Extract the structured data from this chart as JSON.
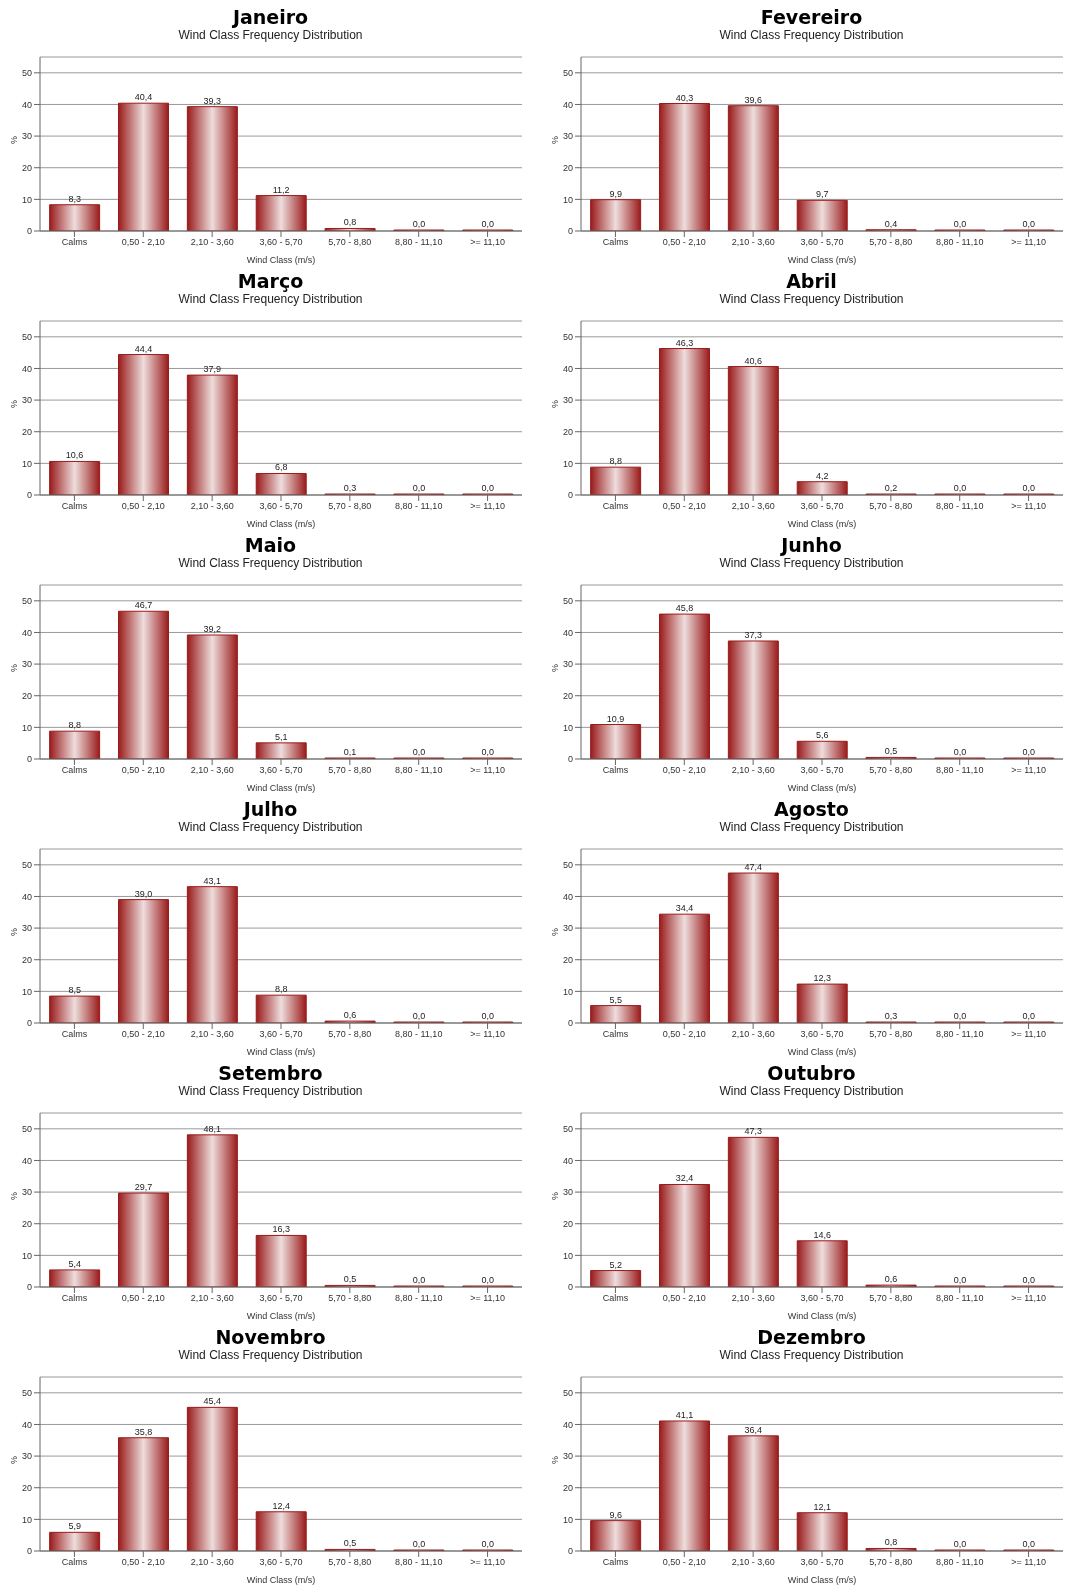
{
  "chart_data": [
    {
      "type": "bar",
      "title": "Janeiro",
      "subtitle": "Wind Class Frequency Distribution",
      "xlabel": "Wind Class (m/s)",
      "ylabel": "%",
      "categories": [
        "Calms",
        "0,50 - 2,10",
        "2,10 - 3,60",
        "3,60 - 5,70",
        "5,70 - 8,80",
        "8,80 - 11,10",
        ">= 11,10"
      ],
      "values": [
        8.3,
        40.4,
        39.3,
        11.2,
        0.8,
        0.0,
        0.0
      ],
      "value_labels": [
        "8,3",
        "40,4",
        "39,3",
        "11,2",
        "0,8",
        "0,0",
        "0,0"
      ],
      "color": "#9a1b1b",
      "ylim": [
        0,
        55
      ],
      "yticks": [
        0,
        10,
        20,
        30,
        40,
        50
      ],
      "grid": "y"
    },
    {
      "type": "bar",
      "title": "Fevereiro",
      "subtitle": "Wind Class Frequency Distribution",
      "xlabel": "Wind Class (m/s)",
      "ylabel": "%",
      "categories": [
        "Calms",
        "0,50 - 2,10",
        "2,10 - 3,60",
        "3,60 - 5,70",
        "5,70 - 8,80",
        "8,80 - 11,10",
        ">= 11,10"
      ],
      "values": [
        9.9,
        40.3,
        39.6,
        9.7,
        0.4,
        0.0,
        0.0
      ],
      "value_labels": [
        "9,9",
        "40,3",
        "39,6",
        "9,7",
        "0,4",
        "0,0",
        "0,0"
      ],
      "color": "#9a1b1b",
      "ylim": [
        0,
        55
      ],
      "yticks": [
        0,
        10,
        20,
        30,
        40,
        50
      ],
      "grid": "y"
    },
    {
      "type": "bar",
      "title": "Março",
      "subtitle": "Wind Class Frequency Distribution",
      "xlabel": "Wind Class (m/s)",
      "ylabel": "%",
      "categories": [
        "Calms",
        "0,50 - 2,10",
        "2,10 - 3,60",
        "3,60 - 5,70",
        "5,70 - 8,80",
        "8,80 - 11,10",
        ">= 11,10"
      ],
      "values": [
        10.6,
        44.4,
        37.9,
        6.8,
        0.3,
        0.0,
        0.0
      ],
      "value_labels": [
        "10,6",
        "44,4",
        "37,9",
        "6,8",
        "0,3",
        "0,0",
        "0,0"
      ],
      "color": "#9a1b1b",
      "ylim": [
        0,
        55
      ],
      "yticks": [
        0,
        10,
        20,
        30,
        40,
        50
      ],
      "grid": "y"
    },
    {
      "type": "bar",
      "title": "Abril",
      "subtitle": "Wind Class Frequency Distribution",
      "xlabel": "Wind Class (m/s)",
      "ylabel": "%",
      "categories": [
        "Calms",
        "0,50 - 2,10",
        "2,10 - 3,60",
        "3,60 - 5,70",
        "5,70 - 8,80",
        "8,80 - 11,10",
        ">= 11,10"
      ],
      "values": [
        8.8,
        46.3,
        40.6,
        4.2,
        0.2,
        0.0,
        0.0
      ],
      "value_labels": [
        "8,8",
        "46,3",
        "40,6",
        "4,2",
        "0,2",
        "0,0",
        "0,0"
      ],
      "color": "#9a1b1b",
      "ylim": [
        0,
        55
      ],
      "yticks": [
        0,
        10,
        20,
        30,
        40,
        50
      ],
      "grid": "y"
    },
    {
      "type": "bar",
      "title": "Maio",
      "subtitle": "Wind Class Frequency Distribution",
      "xlabel": "Wind Class (m/s)",
      "ylabel": "%",
      "categories": [
        "Calms",
        "0,50 - 2,10",
        "2,10 - 3,60",
        "3,60 - 5,70",
        "5,70 - 8,80",
        "8,80 - 11,10",
        ">= 11,10"
      ],
      "values": [
        8.8,
        46.7,
        39.2,
        5.1,
        0.1,
        0.0,
        0.0
      ],
      "value_labels": [
        "8,8",
        "46,7",
        "39,2",
        "5,1",
        "0,1",
        "0,0",
        "0,0"
      ],
      "color": "#9a1b1b",
      "ylim": [
        0,
        55
      ],
      "yticks": [
        0,
        10,
        20,
        30,
        40,
        50
      ],
      "grid": "y"
    },
    {
      "type": "bar",
      "title": "Junho",
      "subtitle": "Wind Class Frequency Distribution",
      "xlabel": "Wind Class (m/s)",
      "ylabel": "%",
      "categories": [
        "Calms",
        "0,50 - 2,10",
        "2,10 - 3,60",
        "3,60 - 5,70",
        "5,70 - 8,80",
        "8,80 - 11,10",
        ">= 11,10"
      ],
      "values": [
        10.9,
        45.8,
        37.3,
        5.6,
        0.5,
        0.0,
        0.0
      ],
      "value_labels": [
        "10,9",
        "45,8",
        "37,3",
        "5,6",
        "0,5",
        "0,0",
        "0,0"
      ],
      "color": "#9a1b1b",
      "ylim": [
        0,
        55
      ],
      "yticks": [
        0,
        10,
        20,
        30,
        40,
        50
      ],
      "grid": "y"
    },
    {
      "type": "bar",
      "title": "Julho",
      "subtitle": "Wind Class Frequency Distribution",
      "xlabel": "Wind Class (m/s)",
      "ylabel": "%",
      "categories": [
        "Calms",
        "0,50 - 2,10",
        "2,10 - 3,60",
        "3,60 - 5,70",
        "5,70 - 8,80",
        "8,80 - 11,10",
        ">= 11,10"
      ],
      "values": [
        8.5,
        39.0,
        43.1,
        8.8,
        0.6,
        0.0,
        0.0
      ],
      "value_labels": [
        "8,5",
        "39,0",
        "43,1",
        "8,8",
        "0,6",
        "0,0",
        "0,0"
      ],
      "color": "#9a1b1b",
      "ylim": [
        0,
        55
      ],
      "yticks": [
        0,
        10,
        20,
        30,
        40,
        50
      ],
      "grid": "y"
    },
    {
      "type": "bar",
      "title": "Agosto",
      "subtitle": "Wind Class Frequency Distribution",
      "xlabel": "Wind Class (m/s)",
      "ylabel": "%",
      "categories": [
        "Calms",
        "0,50 - 2,10",
        "2,10 - 3,60",
        "3,60 - 5,70",
        "5,70 - 8,80",
        "8,80 - 11,10",
        ">= 11,10"
      ],
      "values": [
        5.5,
        34.4,
        47.4,
        12.3,
        0.3,
        0.0,
        0.0
      ],
      "value_labels": [
        "5,5",
        "34,4",
        "47,4",
        "12,3",
        "0,3",
        "0,0",
        "0,0"
      ],
      "color": "#9a1b1b",
      "ylim": [
        0,
        55
      ],
      "yticks": [
        0,
        10,
        20,
        30,
        40,
        50
      ],
      "grid": "y"
    },
    {
      "type": "bar",
      "title": "Setembro",
      "subtitle": "Wind Class Frequency Distribution",
      "xlabel": "Wind Class (m/s)",
      "ylabel": "%",
      "categories": [
        "Calms",
        "0,50 - 2,10",
        "2,10 - 3,60",
        "3,60 - 5,70",
        "5,70 - 8,80",
        "8,80 - 11,10",
        ">= 11,10"
      ],
      "values": [
        5.4,
        29.7,
        48.1,
        16.3,
        0.5,
        0.0,
        0.0
      ],
      "value_labels": [
        "5,4",
        "29,7",
        "48,1",
        "16,3",
        "0,5",
        "0,0",
        "0,0"
      ],
      "color": "#9a1b1b",
      "ylim": [
        0,
        55
      ],
      "yticks": [
        0,
        10,
        20,
        30,
        40,
        50
      ],
      "grid": "y"
    },
    {
      "type": "bar",
      "title": "Outubro",
      "subtitle": "Wind Class Frequency Distribution",
      "xlabel": "Wind Class (m/s)",
      "ylabel": "%",
      "categories": [
        "Calms",
        "0,50 - 2,10",
        "2,10 - 3,60",
        "3,60 - 5,70",
        "5,70 - 8,80",
        "8,80 - 11,10",
        ">= 11,10"
      ],
      "values": [
        5.2,
        32.4,
        47.3,
        14.6,
        0.6,
        0.0,
        0.0
      ],
      "value_labels": [
        "5,2",
        "32,4",
        "47,3",
        "14,6",
        "0,6",
        "0,0",
        "0,0"
      ],
      "color": "#9a1b1b",
      "ylim": [
        0,
        55
      ],
      "yticks": [
        0,
        10,
        20,
        30,
        40,
        50
      ],
      "grid": "y"
    },
    {
      "type": "bar",
      "title": "Novembro",
      "subtitle": "Wind Class Frequency Distribution",
      "xlabel": "Wind Class (m/s)",
      "ylabel": "%",
      "categories": [
        "Calms",
        "0,50 - 2,10",
        "2,10 - 3,60",
        "3,60 - 5,70",
        "5,70 - 8,80",
        "8,80 - 11,10",
        ">= 11,10"
      ],
      "values": [
        5.9,
        35.8,
        45.4,
        12.4,
        0.5,
        0.0,
        0.0
      ],
      "value_labels": [
        "5,9",
        "35,8",
        "45,4",
        "12,4",
        "0,5",
        "0,0",
        "0,0"
      ],
      "color": "#9a1b1b",
      "ylim": [
        0,
        55
      ],
      "yticks": [
        0,
        10,
        20,
        30,
        40,
        50
      ],
      "grid": "y"
    },
    {
      "type": "bar",
      "title": "Dezembro",
      "subtitle": "Wind Class Frequency Distribution",
      "xlabel": "Wind Class (m/s)",
      "ylabel": "%",
      "categories": [
        "Calms",
        "0,50 - 2,10",
        "2,10 - 3,60",
        "3,60 - 5,70",
        "5,70 - 8,80",
        "8,80 - 11,10",
        ">= 11,10"
      ],
      "values": [
        9.6,
        41.1,
        36.4,
        12.1,
        0.8,
        0.0,
        0.0
      ],
      "value_labels": [
        "9,6",
        "41,1",
        "36,4",
        "12,1",
        "0,8",
        "0,0",
        "0,0"
      ],
      "color": "#9a1b1b",
      "ylim": [
        0,
        55
      ],
      "yticks": [
        0,
        10,
        20,
        30,
        40,
        50
      ],
      "grid": "y"
    }
  ]
}
